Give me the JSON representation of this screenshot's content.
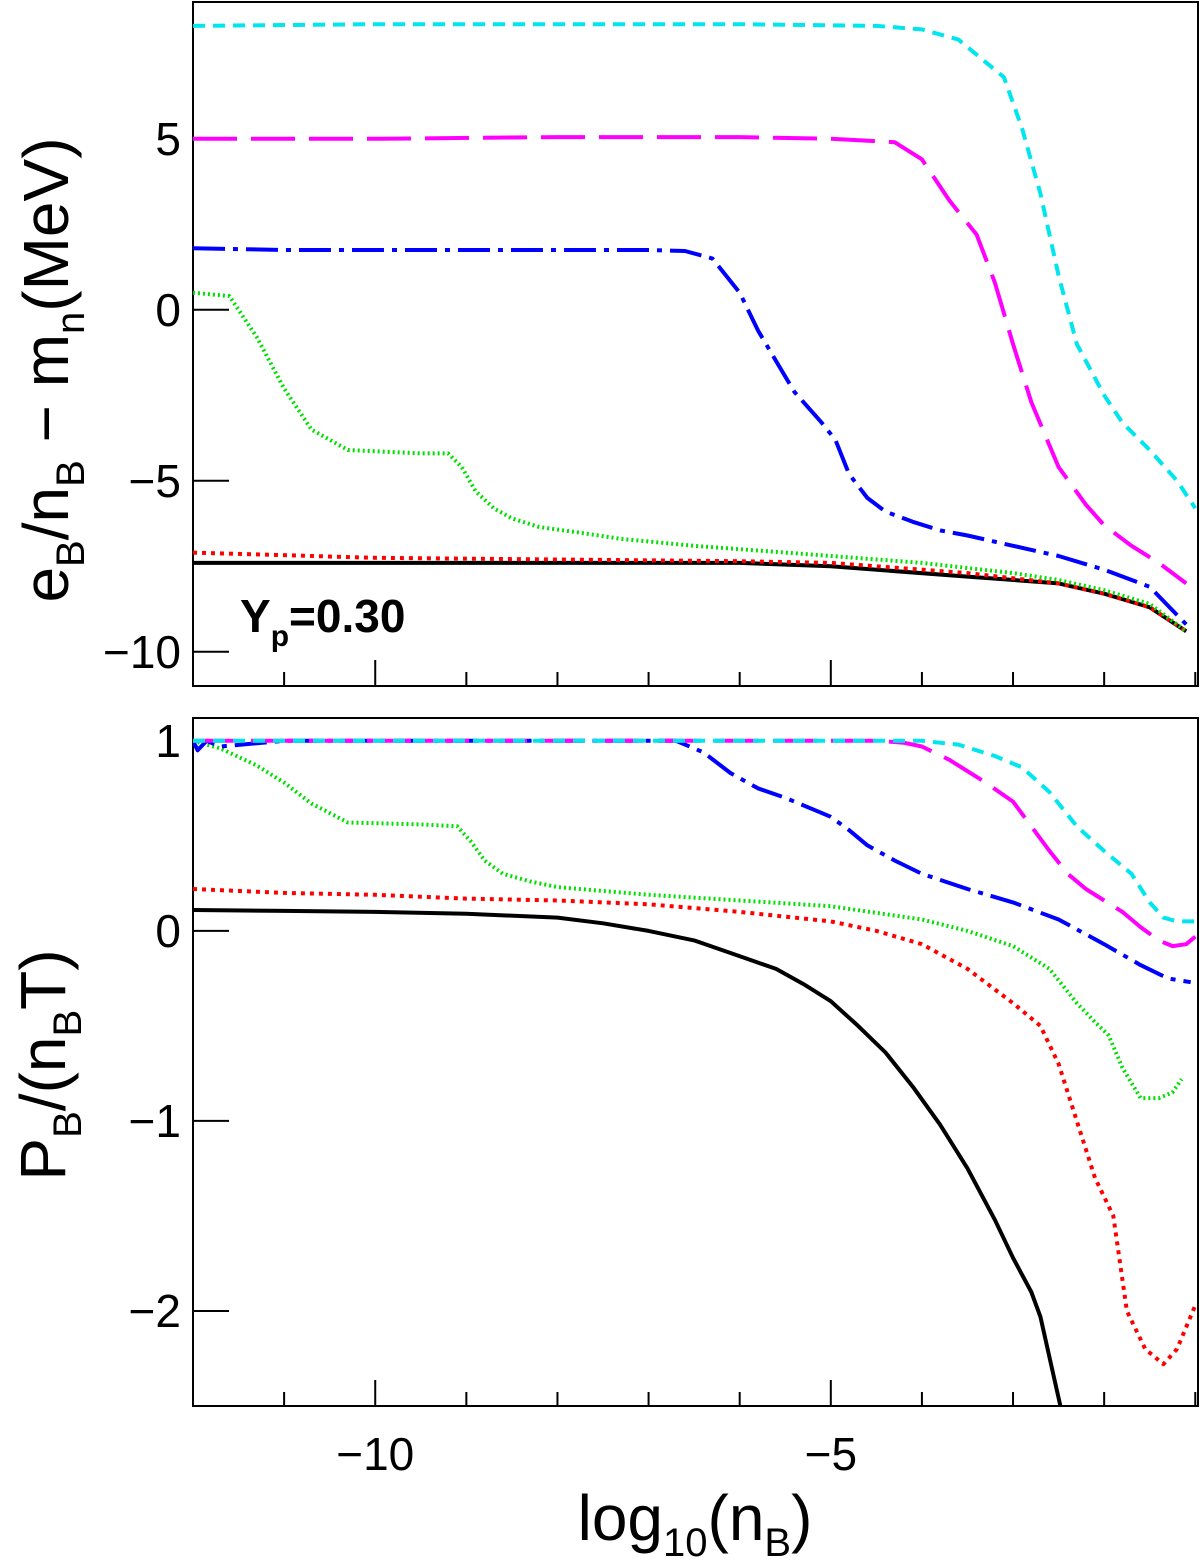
{
  "chart_data": [
    {
      "type": "line",
      "panel": "top",
      "ylabel": "e_B/n_B − m_n(MeV)",
      "ylabel_parts": {
        "e": "e",
        "e_sub": "B",
        "slash_n": "/n",
        "n_sub": "B",
        "mid": " − m",
        "m_sub": "n",
        "unit": "(MeV)"
      },
      "annotation": {
        "main": "Y",
        "sub": "p",
        "value": "=0.30"
      },
      "xlim": [
        -12,
        -0.97
      ],
      "ylim": [
        -11,
        9
      ],
      "yticks": [
        {
          "v": 5,
          "label": "5"
        },
        {
          "v": 0,
          "label": "0"
        },
        {
          "v": -5,
          "label": "−5"
        },
        {
          "v": -10,
          "label": "−10"
        }
      ],
      "series": [
        {
          "name": "black-solid",
          "color": "#000000",
          "dash": "",
          "x": [
            -12,
            -6,
            -5,
            -3.5,
            -2.5,
            -2,
            -1.5,
            -1.1
          ],
          "y": [
            -7.4,
            -7.4,
            -7.5,
            -7.8,
            -8.0,
            -8.3,
            -8.7,
            -9.4
          ]
        },
        {
          "name": "red-dotted",
          "color": "#ff0000",
          "dash": "4 5",
          "x": [
            -12,
            -10,
            -8,
            -6,
            -5,
            -3.5,
            -2.5,
            -2,
            -1.5,
            -1.1
          ],
          "y": [
            -7.1,
            -7.25,
            -7.3,
            -7.35,
            -7.4,
            -7.7,
            -8.0,
            -8.3,
            -8.7,
            -9.4
          ]
        },
        {
          "name": "green-dotted",
          "color": "#00e000",
          "dash": "2 3",
          "x": [
            -12,
            -11.6,
            -11.3,
            -11,
            -10.7,
            -10.3,
            -9.5,
            -9.2,
            -9.05,
            -8.9,
            -8.7,
            -8.5,
            -8.2,
            -7.8,
            -7.3,
            -6.5,
            -6,
            -5,
            -4,
            -3,
            -2.5,
            -2,
            -1.5,
            -1.1
          ],
          "y": [
            0.5,
            0.4,
            -0.8,
            -2.3,
            -3.5,
            -4.1,
            -4.2,
            -4.2,
            -4.6,
            -5.3,
            -5.8,
            -6.1,
            -6.35,
            -6.5,
            -6.7,
            -6.9,
            -7.0,
            -7.2,
            -7.4,
            -7.7,
            -7.9,
            -8.2,
            -8.6,
            -9.4
          ]
        },
        {
          "name": "blue-dashdot",
          "color": "#0000ff",
          "dash": "32 8 5 8",
          "x": [
            -12,
            -11,
            -9,
            -8,
            -7,
            -6.6,
            -6.3,
            -6.0,
            -5.8,
            -5.6,
            -5.4,
            -5.1,
            -4.95,
            -4.8,
            -4.6,
            -4.4,
            -4.1,
            -3.8,
            -3.5,
            -3,
            -2.5,
            -2,
            -1.5,
            -1.1
          ],
          "y": [
            1.8,
            1.75,
            1.75,
            1.75,
            1.75,
            1.72,
            1.5,
            0.5,
            -0.6,
            -1.5,
            -2.4,
            -3.3,
            -3.8,
            -4.8,
            -5.5,
            -5.9,
            -6.2,
            -6.45,
            -6.6,
            -6.9,
            -7.2,
            -7.6,
            -8.1,
            -9.2
          ]
        },
        {
          "name": "magenta-longdash",
          "color": "#ff00ff",
          "dash": "44 14",
          "x": [
            -12,
            -10,
            -8,
            -6,
            -5,
            -4.3,
            -4.0,
            -3.7,
            -3.4,
            -3.2,
            -3.0,
            -2.8,
            -2.5,
            -2.2,
            -2.0,
            -1.7,
            -1.4,
            -1.1
          ],
          "y": [
            5.0,
            5.0,
            5.05,
            5.05,
            5.0,
            4.9,
            4.4,
            3.2,
            2.2,
            0.8,
            -1.0,
            -2.7,
            -4.6,
            -5.7,
            -6.3,
            -6.9,
            -7.4,
            -8.0
          ]
        },
        {
          "name": "cyan-dashed",
          "color": "#00e5ee",
          "dash": "12 8",
          "x": [
            -12,
            -10,
            -8,
            -6,
            -4.5,
            -4.0,
            -3.6,
            -3.1,
            -2.9,
            -2.7,
            -2.5,
            -2.3,
            -2.0,
            -1.8,
            -1.5,
            -1.2,
            -1.0
          ],
          "y": [
            8.3,
            8.35,
            8.35,
            8.35,
            8.3,
            8.2,
            7.9,
            6.8,
            5.3,
            3.4,
            1.0,
            -1.0,
            -2.5,
            -3.3,
            -4.1,
            -5.0,
            -5.8
          ]
        }
      ]
    },
    {
      "type": "line",
      "panel": "bottom",
      "xlabel": "log_10(n_B)",
      "xlabel_parts": {
        "log": "log",
        "log_sub": "10",
        "open": "(n",
        "n_sub": "B",
        "close": ")"
      },
      "ylabel": "P_B/(n_B T)",
      "ylabel_parts": {
        "p": "P",
        "p_sub": "B",
        "mid": "/(n",
        "n_sub": "B",
        "end": "T)"
      },
      "xlim": [
        -12,
        -0.97
      ],
      "ylim": [
        -2.5,
        1.12
      ],
      "xticks": [
        {
          "v": -10,
          "label": "−10"
        },
        {
          "v": -5,
          "label": "−5"
        }
      ],
      "yticks": [
        {
          "v": 1,
          "label": "1"
        },
        {
          "v": 0,
          "label": "0"
        },
        {
          "v": -1,
          "label": "−1"
        },
        {
          "v": -2,
          "label": "−2"
        }
      ],
      "series": [
        {
          "name": "black-solid",
          "color": "#000000",
          "dash": "",
          "x": [
            -12,
            -11,
            -10,
            -9,
            -8,
            -7.5,
            -7,
            -6.5,
            -6.2,
            -5.9,
            -5.6,
            -5.3,
            -5,
            -4.7,
            -4.4,
            -4.1,
            -3.8,
            -3.5,
            -3.2,
            -3.0,
            -2.8,
            -2.7,
            -2.55,
            -2.48
          ],
          "y": [
            0.11,
            0.105,
            0.1,
            0.09,
            0.07,
            0.04,
            0.0,
            -0.05,
            -0.1,
            -0.15,
            -0.2,
            -0.28,
            -0.37,
            -0.5,
            -0.64,
            -0.82,
            -1.02,
            -1.25,
            -1.52,
            -1.72,
            -1.9,
            -2.03,
            -2.35,
            -2.5
          ]
        },
        {
          "name": "red-dotted",
          "color": "#ff0000",
          "dash": "4 5",
          "x": [
            -12,
            -11,
            -10,
            -9,
            -8,
            -7,
            -6,
            -5,
            -4.5,
            -4,
            -3.5,
            -3.0,
            -2.7,
            -2.5,
            -2.3,
            -2.1,
            -1.9,
            -1.75,
            -1.55,
            -1.35,
            -1.2,
            -1.0
          ],
          "y": [
            0.22,
            0.2,
            0.19,
            0.17,
            0.16,
            0.14,
            0.1,
            0.05,
            0.0,
            -0.07,
            -0.2,
            -0.38,
            -0.5,
            -0.7,
            -1.0,
            -1.3,
            -1.5,
            -2.0,
            -2.2,
            -2.28,
            -2.2,
            -1.97
          ]
        },
        {
          "name": "green-dotted",
          "color": "#00e000",
          "dash": "2 3",
          "x": [
            -12,
            -11.7,
            -11.3,
            -11,
            -10.7,
            -10.3,
            -9.5,
            -9.1,
            -8.95,
            -8.8,
            -8.6,
            -8.3,
            -8,
            -7.5,
            -7,
            -6,
            -5,
            -4,
            -3.5,
            -3,
            -2.6,
            -2.3,
            -2.1,
            -1.95,
            -1.8,
            -1.6,
            -1.4,
            -1.25,
            -1.15
          ],
          "y": [
            1.0,
            0.96,
            0.87,
            0.78,
            0.67,
            0.57,
            0.56,
            0.55,
            0.47,
            0.37,
            0.3,
            0.26,
            0.23,
            0.21,
            0.19,
            0.16,
            0.13,
            0.06,
            0.0,
            -0.08,
            -0.2,
            -0.38,
            -0.48,
            -0.55,
            -0.72,
            -0.88,
            -0.88,
            -0.85,
            -0.78
          ]
        },
        {
          "name": "blue-dashdot",
          "color": "#0000ff",
          "dash": "32 8 5 8",
          "x": [
            -12,
            -11.95,
            -11.85,
            -11.7,
            -11,
            -9,
            -7,
            -6.7,
            -6.4,
            -6.1,
            -5.8,
            -5.5,
            -5.2,
            -5.0,
            -4.8,
            -4.6,
            -4.3,
            -4.0,
            -3.5,
            -3.0,
            -2.5,
            -2.0,
            -1.6,
            -1.3,
            -1.05
          ],
          "y": [
            1.0,
            0.95,
            1.0,
            0.97,
            1.0,
            1.0,
            1.0,
            1.0,
            0.94,
            0.83,
            0.75,
            0.7,
            0.64,
            0.6,
            0.53,
            0.45,
            0.37,
            0.3,
            0.22,
            0.15,
            0.06,
            -0.07,
            -0.18,
            -0.25,
            -0.27
          ]
        },
        {
          "name": "magenta-longdash",
          "color": "#ff00ff",
          "dash": "44 14",
          "x": [
            -12,
            -10,
            -8,
            -6,
            -4.5,
            -4.2,
            -4.0,
            -3.7,
            -3.3,
            -3.0,
            -2.8,
            -2.6,
            -2.4,
            -2.2,
            -2.0,
            -1.8,
            -1.6,
            -1.4,
            -1.25,
            -1.1,
            -1.0
          ],
          "y": [
            1.0,
            1.0,
            1.0,
            1.0,
            1.0,
            0.99,
            0.97,
            0.9,
            0.78,
            0.68,
            0.55,
            0.42,
            0.3,
            0.22,
            0.16,
            0.1,
            0.02,
            -0.05,
            -0.08,
            -0.07,
            -0.03
          ]
        },
        {
          "name": "cyan-dashed",
          "color": "#00e5ee",
          "dash": "12 8",
          "x": [
            -12,
            -10,
            -8,
            -6,
            -4.5,
            -4.0,
            -3.6,
            -3.2,
            -2.9,
            -2.6,
            -2.3,
            -2.0,
            -1.7,
            -1.5,
            -1.35,
            -1.2,
            -1.0
          ],
          "y": [
            1.0,
            1.0,
            1.0,
            1.0,
            1.0,
            1.0,
            0.98,
            0.92,
            0.86,
            0.73,
            0.55,
            0.42,
            0.3,
            0.15,
            0.07,
            0.05,
            0.05
          ]
        }
      ]
    }
  ]
}
